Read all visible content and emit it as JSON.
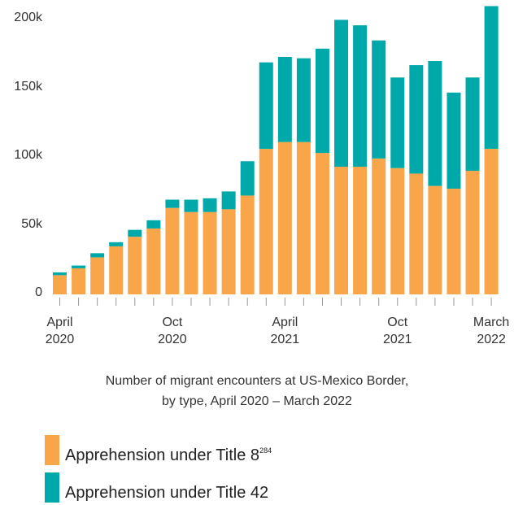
{
  "chart_data": {
    "type": "stacked_bar",
    "caption": "Number of migrant encounters at US-Mexico Border,\nby type, April 2020 – March 2022",
    "categories": [
      "April 2020",
      null,
      null,
      null,
      null,
      null,
      "Oct 2020",
      null,
      null,
      null,
      null,
      null,
      "April 2021",
      null,
      null,
      null,
      null,
      null,
      "Oct 2021",
      null,
      null,
      null,
      null,
      "March 2022"
    ],
    "series": [
      {
        "name": "Apprehension under Title 8",
        "footnote": "284",
        "color": "#f9a64a",
        "values": [
          14000,
          19000,
          27000,
          35000,
          42000,
          48000,
          63000,
          60000,
          60000,
          62000,
          72000,
          106000,
          111000,
          111000,
          103000,
          93000,
          93000,
          99000,
          92000,
          88000,
          79000,
          77000,
          90000,
          106000
        ]
      },
      {
        "name": "Apprehension under Title 42",
        "color": "#00a9a9",
        "values": [
          2000,
          2000,
          3000,
          3000,
          5000,
          6000,
          6000,
          9000,
          10000,
          13000,
          25000,
          63000,
          62000,
          61000,
          76000,
          107000,
          103000,
          86000,
          66000,
          79000,
          91000,
          70000,
          68000,
          104000
        ]
      }
    ],
    "ylim": [
      0,
      210000
    ],
    "yticks": [
      0,
      {
        "value": 50000,
        "label": "50k"
      },
      {
        "value": 100000,
        "label": "100k"
      },
      {
        "value": 150000,
        "label": "150k"
      },
      {
        "value": 200000,
        "label": "200k"
      }
    ],
    "grid": false
  }
}
